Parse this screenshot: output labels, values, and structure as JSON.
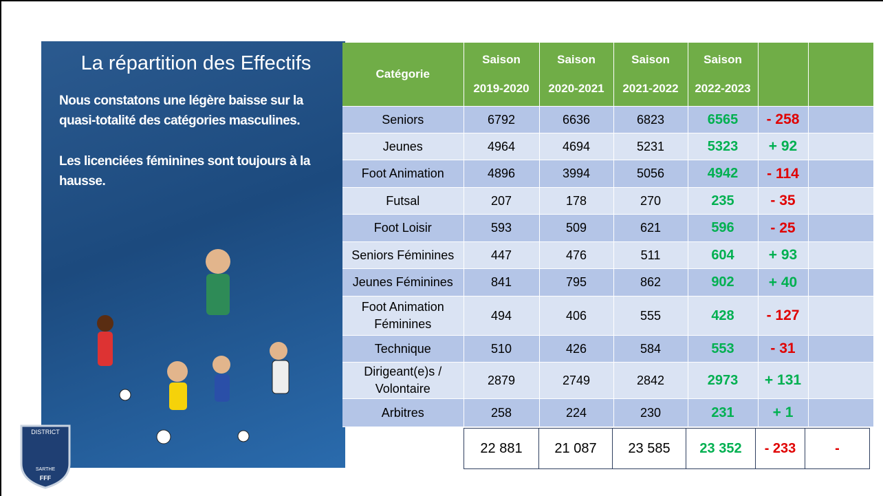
{
  "header": {
    "title": "La répartition des Effectifs",
    "paragraphs": [
      "Nous constatons une légère baisse sur la quasi-totalité  des catégories masculines.",
      "Les licenciées féminines sont toujours à la hausse."
    ]
  },
  "logo": {
    "top": "DISTRICT",
    "middle": "SARTHE",
    "bottom": "FFF"
  },
  "table": {
    "columns": [
      [
        "Catégorie"
      ],
      [
        "Saison",
        "2019-2020"
      ],
      [
        "Saison",
        "2020-2021"
      ],
      [
        "Saison",
        "2021-2022"
      ],
      [
        "Saison",
        "2022-2023"
      ],
      [],
      []
    ],
    "rows": [
      [
        "Seniors",
        6792,
        6636,
        6823,
        6565,
        "- 258"
      ],
      [
        "Jeunes",
        4964,
        4694,
        5231,
        5323,
        "+ 92"
      ],
      [
        "Foot Animation",
        4896,
        3994,
        5056,
        4942,
        "- 114"
      ],
      [
        "Futsal",
        207,
        178,
        270,
        235,
        "- 35"
      ],
      [
        "Foot Loisir",
        593,
        509,
        621,
        596,
        "- 25"
      ],
      [
        "Seniors Féminines",
        447,
        476,
        511,
        604,
        "+ 93"
      ],
      [
        "Jeunes Féminines",
        841,
        795,
        862,
        902,
        "+ 40"
      ],
      [
        "Foot Animation Féminines",
        494,
        406,
        555,
        428,
        "- 127"
      ],
      [
        "Technique",
        510,
        426,
        584,
        553,
        "- 31"
      ],
      [
        "Dirigeant(e)s / Volontaire",
        2879,
        2749,
        2842,
        2973,
        "+ 131"
      ],
      [
        "Arbitres",
        258,
        224,
        230,
        231,
        "+ 1"
      ]
    ],
    "totals": [
      "22 881",
      "21 087",
      "23 585",
      "23 352",
      "- 233",
      "-"
    ]
  }
}
